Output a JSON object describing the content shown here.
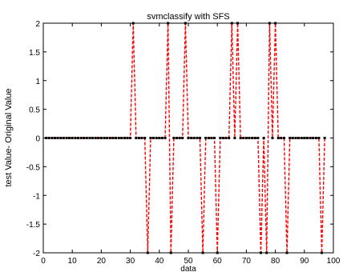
{
  "chart_data": {
    "type": "line",
    "title": "svmclassify with SFS",
    "xlabel": "data",
    "ylabel": "test Value- Original Value",
    "xlim": [
      0,
      100
    ],
    "ylim": [
      -2,
      2
    ],
    "xticks": [
      0,
      10,
      20,
      30,
      40,
      50,
      60,
      70,
      80,
      90,
      100
    ],
    "yticks": [
      -2,
      -1.5,
      -1,
      -0.5,
      0,
      0.5,
      1,
      1.5,
      2
    ],
    "xtick_labels": [
      "0",
      "10",
      "20",
      "30",
      "40",
      "50",
      "60",
      "70",
      "80",
      "90",
      "100"
    ],
    "ytick_labels": [
      "-2",
      "-1.5",
      "-1",
      "-0.5",
      "0",
      "0.5",
      "1",
      "1.5",
      "2"
    ],
    "grid": false,
    "series": [
      {
        "line_style": "dashed",
        "marker": "square",
        "line_color": "#ff0000",
        "marker_color": "#000000",
        "x": [
          1,
          2,
          3,
          4,
          5,
          6,
          7,
          8,
          9,
          10,
          11,
          12,
          13,
          14,
          15,
          16,
          17,
          18,
          19,
          20,
          21,
          22,
          23,
          24,
          25,
          26,
          27,
          28,
          29,
          30,
          31,
          32,
          33,
          34,
          35,
          36,
          37,
          38,
          39,
          40,
          41,
          42,
          43,
          44,
          45,
          46,
          47,
          48,
          49,
          50,
          51,
          52,
          53,
          54,
          55,
          56,
          57,
          58,
          59,
          60,
          61,
          62,
          63,
          64,
          65,
          66,
          67,
          68,
          69,
          70,
          71,
          72,
          73,
          74,
          75,
          76,
          77,
          78,
          79,
          80,
          81,
          82,
          83,
          84,
          85,
          86,
          87,
          88,
          89,
          90,
          91,
          92,
          93,
          94,
          95,
          96,
          97
        ],
        "values": [
          0,
          0,
          0,
          0,
          0,
          0,
          0,
          0,
          0,
          0,
          0,
          0,
          0,
          0,
          0,
          0,
          0,
          0,
          0,
          0,
          0,
          0,
          0,
          0,
          0,
          0,
          0,
          0,
          0,
          0,
          2,
          0,
          0,
          0,
          0,
          -2,
          0,
          0,
          0,
          0,
          0,
          0,
          2,
          -2,
          0,
          0,
          0,
          0,
          2,
          0,
          0,
          0,
          0,
          0,
          -2,
          0,
          0,
          0,
          0,
          -2,
          0,
          0,
          0,
          0,
          2,
          0,
          2,
          0,
          0,
          0,
          0,
          0,
          0,
          0,
          -2,
          0,
          -2,
          2,
          0,
          2,
          0,
          0,
          0,
          -2,
          0,
          0,
          0,
          0,
          0,
          0,
          0,
          0,
          0,
          0,
          0,
          -2,
          0
        ]
      }
    ]
  }
}
